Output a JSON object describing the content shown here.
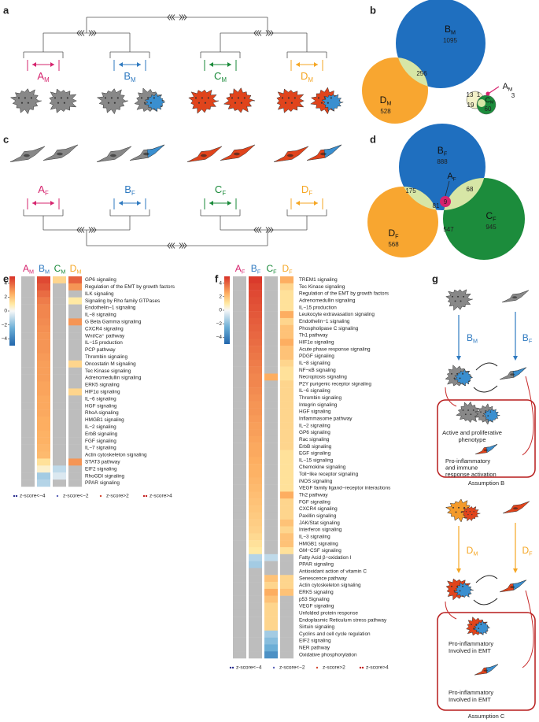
{
  "panel_labels": [
    "a",
    "b",
    "c",
    "d",
    "e",
    "f",
    "g"
  ],
  "panel_a": {
    "groups": [
      {
        "main": "A",
        "sub": "M",
        "color": "#d6246e"
      },
      {
        "main": "B",
        "sub": "M",
        "color": "#2f7ac0"
      },
      {
        "main": "C",
        "sub": "M",
        "color": "#1a8a3a"
      },
      {
        "main": "D",
        "sub": "M",
        "color": "#f5a623"
      }
    ]
  },
  "panel_b": {
    "sets": [
      {
        "main": "B",
        "sub": "M",
        "count": 1095
      },
      {
        "main": "D",
        "sub": "M",
        "count": 528
      },
      {
        "main": "C",
        "sub": "M"
      },
      {
        "main": "A",
        "sub": "M",
        "count": 3
      }
    ],
    "regions": [
      256,
      13,
      1,
      19,
      60
    ]
  },
  "panel_c": {
    "groups": [
      {
        "main": "A",
        "sub": "F",
        "color": "#d6246e"
      },
      {
        "main": "B",
        "sub": "F",
        "color": "#2f7ac0"
      },
      {
        "main": "C",
        "sub": "F",
        "color": "#1a8a3a"
      },
      {
        "main": "D",
        "sub": "F",
        "color": "#f5a623"
      }
    ]
  },
  "panel_d": {
    "sets": [
      {
        "main": "B",
        "sub": "F",
        "count": 888
      },
      {
        "main": "D",
        "sub": "F",
        "count": 568
      },
      {
        "main": "C",
        "sub": "F",
        "count": 945
      },
      {
        "main": "A",
        "sub": "F"
      }
    ],
    "regions": [
      175,
      68,
      81,
      9,
      547
    ]
  },
  "heatmap_e": {
    "columns": [
      {
        "main": "A",
        "sub": "M",
        "color": "#d6246e"
      },
      {
        "main": "B",
        "sub": "M",
        "color": "#2f7ac0"
      },
      {
        "main": "C",
        "sub": "M",
        "color": "#1a8a3a"
      },
      {
        "main": "D",
        "sub": "M",
        "color": "#f5a623"
      }
    ],
    "rows": [
      "GP6 signaling",
      "Regulation of the EMT by growth factors",
      "ILK signaling",
      "Signaling by Rho family GTPases",
      "Endothelin−1 signaling",
      "IL−8 signaling",
      "G Beta Gamma signaling",
      "CXCR4 signaling",
      "Wnt/Ca⁺ pathway",
      "IL−15 production",
      "PCP pathway",
      "Thrombin signaling",
      "Oncostatin M signaling",
      "Tec Kinase signaling",
      "Adrenomedullin signaling",
      "ERK5 signaling",
      "HIF1α signaling",
      "IL−6 signaling",
      "HGF signaling",
      "RhoA signaling",
      "HMGB1 signaling",
      "IL−2 signaling",
      "ErbB signaling",
      "FGF signaling",
      "IL−7 signaling",
      "Actin cytoskeleton signaling",
      "STAT3 pathway",
      "EIF2 signaling",
      "RhoGDI signaling",
      "PPAR signaling"
    ],
    "values": [
      [
        null,
        null,
        null,
        null,
        null,
        null,
        null,
        null,
        null,
        null,
        null,
        null,
        null,
        null,
        null,
        null,
        null,
        null,
        null,
        null,
        null,
        null,
        null,
        null,
        null,
        null,
        null,
        null,
        null,
        null
      ],
      [
        4.5,
        4.2,
        3.8,
        3.5,
        3.3,
        3.3,
        3.2,
        3.1,
        3.0,
        3.0,
        3.0,
        2.9,
        2.8,
        2.8,
        2.8,
        2.7,
        2.7,
        2.6,
        2.6,
        2.6,
        2.5,
        2.5,
        2.4,
        2.4,
        2.3,
        2.2,
        1.2,
        0.5,
        -1.5,
        -1.2
      ],
      [
        1.5,
        null,
        null,
        null,
        null,
        null,
        null,
        null,
        null,
        null,
        null,
        null,
        null,
        null,
        null,
        null,
        null,
        null,
        null,
        null,
        null,
        null,
        null,
        null,
        null,
        null,
        null,
        -1,
        -0.5,
        null
      ],
      [
        4,
        3,
        null,
        1,
        null,
        null,
        3,
        null,
        null,
        null,
        null,
        null,
        1.5,
        null,
        null,
        null,
        1.5,
        null,
        null,
        null,
        null,
        null,
        null,
        null,
        null,
        null,
        3,
        null,
        null,
        null
      ]
    ],
    "color_lim": [
      -5,
      5
    ],
    "colorbar_ticks": [
      4,
      2,
      0,
      {
        "value": -2,
        "label": "−2"
      },
      {
        "value": -4,
        "label": "−4"
      }
    ],
    "legend": [
      "z-score<−4",
      "z-score<−2",
      "z-score>2",
      "z-score>4"
    ]
  },
  "heatmap_f": {
    "columns": [
      {
        "main": "A",
        "sub": "F",
        "color": "#d6246e"
      },
      {
        "main": "B",
        "sub": "F",
        "color": "#2f7ac0"
      },
      {
        "main": "C",
        "sub": "F",
        "color": "#1a8a3a"
      },
      {
        "main": "D",
        "sub": "F",
        "color": "#f5a623"
      }
    ],
    "rows": [
      "TREM1 signaling",
      "Tec Kinase signaling",
      "Regulation of the EMT by growth factors",
      "Adrenomedullin signaling",
      "IL−15 production",
      "Leukocyte extravasation signaling",
      "Endothelin−1 signaling",
      "Phospholipase C signaling",
      "Th1 pathway",
      "HIF1α signaling",
      "Acute phase response signaling",
      "PDGF signaling",
      "IL−8 signaling",
      "NF−κB signaling",
      "Necroptosis signaling",
      "P2Y purigenic receptor signaling",
      "IL−6 signaling",
      "Thrombin signaling",
      "Integrin signaling",
      "HGF signaling",
      "Inflammasome pathway",
      "IL−2 signaling",
      "GP6 signaling",
      "Rac signaling",
      "ErbB signaling",
      "EGF signaling",
      "IL−15 signaling",
      "Chemokine signaling",
      "Toll−like receptor signaling",
      "iNOS signaling",
      "VEGF family ligand−receptor interactions",
      "Th2 pathway",
      "FGF signaling",
      "CXCR4 signaling",
      "Paxillin signaling",
      "JAK/Stat signaling",
      "Interferon signaling",
      "IL−3 signaling",
      "HMGB1 signaling",
      "GM−CSF signaling",
      "Fatty Acid β−oxidation I",
      "PPAR signaling",
      "Antioxidant action of vitamin C",
      "Senescence pathway",
      "Actin cytoskeleton signaling",
      "ERK5 signaling",
      "p53 Signaling",
      "VEGF signaling",
      "Unfolded protein response",
      "Endoplasmic Reticulum stress pathway",
      "Sirtuin signaling",
      "Cyclins and cell cycle regulation",
      "EIF2 signaling",
      "NER pathway",
      "Oxidative phosphorylation"
    ],
    "values": [
      [
        null,
        null,
        null,
        null,
        null,
        null,
        null,
        null,
        null,
        null,
        null,
        null,
        null,
        null,
        null,
        null,
        null,
        null,
        null,
        null,
        null,
        null,
        null,
        null,
        null,
        null,
        null,
        null,
        null,
        null,
        null,
        null,
        null,
        null,
        null,
        null,
        null,
        null,
        null,
        null,
        null,
        null,
        null,
        null,
        null,
        null,
        null,
        null,
        null,
        null,
        null,
        null,
        null,
        null,
        null
      ],
      [
        4.8,
        4.6,
        4.5,
        4.4,
        4.3,
        4.2,
        4.1,
        4.0,
        3.9,
        3.8,
        3.7,
        3.6,
        3.5,
        3.4,
        3.3,
        3.3,
        3.2,
        3.1,
        3.0,
        3.0,
        2.9,
        2.8,
        2.8,
        2.7,
        2.6,
        2.6,
        2.5,
        2.4,
        2.4,
        2.3,
        2.2,
        2.1,
        2.0,
        1.9,
        1.8,
        1.7,
        1.6,
        1.4,
        1.2,
        1.0,
        -1.2,
        -1.5,
        null,
        null,
        null,
        null,
        null,
        null,
        null,
        null,
        null,
        null,
        null,
        null,
        null
      ],
      [
        null,
        null,
        null,
        null,
        null,
        null,
        null,
        null,
        null,
        null,
        null,
        null,
        null,
        null,
        2.5,
        null,
        null,
        null,
        null,
        null,
        null,
        null,
        null,
        null,
        null,
        null,
        null,
        null,
        null,
        null,
        null,
        null,
        null,
        null,
        null,
        null,
        null,
        null,
        null,
        null,
        -1,
        null,
        null,
        2,
        1.5,
        2.5,
        2,
        1.5,
        1.5,
        1.5,
        1.5,
        -1.5,
        -2,
        -2.5,
        -3.5
      ],
      [
        2.5,
        1.5,
        1.2,
        1.2,
        1.2,
        2.5,
        1.5,
        2,
        2,
        2.5,
        2,
        2,
        1.5,
        1.2,
        1.2,
        1.5,
        1.5,
        1.5,
        1.5,
        1.5,
        1.5,
        1.5,
        1.5,
        1.5,
        1.5,
        1.2,
        1.2,
        1.2,
        1.2,
        1.2,
        1.2,
        2.5,
        1.5,
        1.5,
        1.5,
        2,
        1.5,
        2,
        2,
        1.2,
        null,
        null,
        null,
        1.5,
        1.5,
        2,
        null,
        null,
        null,
        null,
        null,
        null,
        null,
        null,
        null
      ]
    ],
    "color_lim": [
      -5,
      5
    ],
    "colorbar_ticks": [
      4,
      2,
      0,
      {
        "value": -2,
        "label": "−2"
      },
      {
        "value": -4,
        "label": "−4"
      }
    ],
    "legend": [
      "z-score<−4",
      "z-score<−2",
      "z-score>2",
      "z-score>4"
    ]
  },
  "panel_g": {
    "arrows": [
      {
        "main": "B",
        "sub": "M",
        "color": "#2f7ac0"
      },
      {
        "main": "B",
        "sub": "F",
        "color": "#2f7ac0"
      },
      {
        "main": "D",
        "sub": "M",
        "color": "#f5a623"
      },
      {
        "main": "D",
        "sub": "F",
        "color": "#f5a623"
      }
    ],
    "box_b_top": [
      "Active and proliferative",
      "phenotype"
    ],
    "box_b_bottom": [
      "Pro-inflammatory",
      "and immune",
      "response activation"
    ],
    "assumption_b": "Assumption  B",
    "box_c_top": [
      "Pro-inflammatory",
      "Involved in EMT"
    ],
    "box_c_bottom": [
      "Pro-inflammatory",
      "Involved in EMT"
    ],
    "assumption_c": "Assumption  C"
  }
}
